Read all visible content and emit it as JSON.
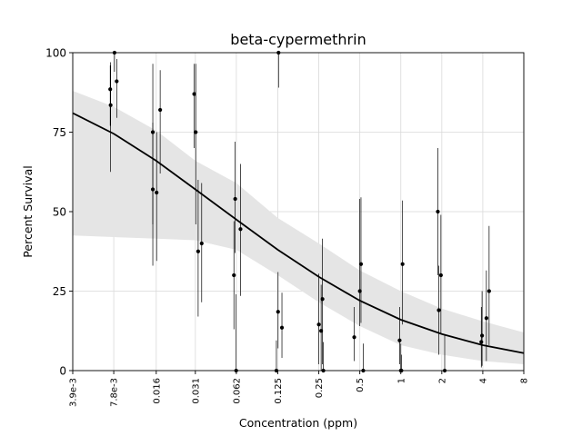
{
  "chart_data": {
    "type": "scatter",
    "title": "beta-cypermethrin",
    "xlabel": "Concentration (ppm)",
    "ylabel": "Percent Survival",
    "x_scale": "log2",
    "xlim": [
      0.0039,
      8
    ],
    "ylim": [
      0,
      100
    ],
    "x_ticks": [
      {
        "value": 0.0039,
        "label": "3.9e-3"
      },
      {
        "value": 0.0078,
        "label": "7.8e-3"
      },
      {
        "value": 0.016,
        "label": "0.016"
      },
      {
        "value": 0.031,
        "label": "0.031"
      },
      {
        "value": 0.062,
        "label": "0.062"
      },
      {
        "value": 0.125,
        "label": "0.125"
      },
      {
        "value": 0.25,
        "label": "0.25"
      },
      {
        "value": 0.5,
        "label": "0.5"
      },
      {
        "value": 1,
        "label": "1"
      },
      {
        "value": 2,
        "label": "2"
      },
      {
        "value": 4,
        "label": "4"
      },
      {
        "value": 8,
        "label": "8"
      }
    ],
    "y_ticks": [
      {
        "value": 0,
        "label": "0"
      },
      {
        "value": 25,
        "label": "25"
      },
      {
        "value": 50,
        "label": "50"
      },
      {
        "value": 75,
        "label": "75"
      },
      {
        "value": 100,
        "label": "100"
      }
    ],
    "grid": true,
    "colors": {
      "points": "#000000",
      "curve": "#000000",
      "band": "#e5e5e5",
      "grid": "#d9d9d9"
    },
    "fit_curve": {
      "x": [
        0.0039,
        0.0078,
        0.016,
        0.031,
        0.062,
        0.125,
        0.25,
        0.5,
        1,
        2,
        4,
        8
      ],
      "y": [
        81,
        74.5,
        66,
        57,
        47.5,
        38,
        29.5,
        22,
        16,
        11.5,
        8,
        5.5
      ]
    },
    "confidence_band": {
      "x": [
        0.0039,
        0.0078,
        0.016,
        0.031,
        0.062,
        0.125,
        0.25,
        0.5,
        1,
        2,
        4,
        8
      ],
      "lower": [
        42.5,
        42,
        41.5,
        41,
        38,
        30,
        21.5,
        14,
        8,
        5,
        3,
        2
      ],
      "upper": [
        88,
        83,
        75.5,
        66,
        59,
        48,
        40,
        31.5,
        25,
        19.5,
        15.5,
        12
      ]
    },
    "points": [
      {
        "x": 0.00735,
        "y": 88.5,
        "lo": 77,
        "hi": 96
      },
      {
        "x": 0.0074,
        "y": 83.5,
        "lo": 62.5,
        "hi": 97
      },
      {
        "x": 0.0079,
        "y": 100,
        "lo": 94,
        "hi": 100
      },
      {
        "x": 0.0082,
        "y": 91,
        "lo": 79.5,
        "hi": 98
      },
      {
        "x": 0.0151,
        "y": 75,
        "lo": 46,
        "hi": 96.5
      },
      {
        "x": 0.0151,
        "y": 57,
        "lo": 33,
        "hi": 78
      },
      {
        "x": 0.0161,
        "y": 56,
        "lo": 34.5,
        "hi": 75
      },
      {
        "x": 0.0171,
        "y": 82,
        "lo": 62,
        "hi": 94.5
      },
      {
        "x": 0.0304,
        "y": 87,
        "lo": 70,
        "hi": 96.5
      },
      {
        "x": 0.0312,
        "y": 75,
        "lo": 46,
        "hi": 96.5
      },
      {
        "x": 0.0325,
        "y": 37.5,
        "lo": 17,
        "hi": 60
      },
      {
        "x": 0.0345,
        "y": 40,
        "lo": 21.5,
        "hi": 59
      },
      {
        "x": 0.0595,
        "y": 30,
        "lo": 13,
        "hi": 47
      },
      {
        "x": 0.0608,
        "y": 54,
        "lo": 37,
        "hi": 72
      },
      {
        "x": 0.0618,
        "y": 0,
        "lo": 0,
        "hi": 24
      },
      {
        "x": 0.0665,
        "y": 44.5,
        "lo": 23.5,
        "hi": 65
      },
      {
        "x": 0.122,
        "y": 0,
        "lo": 0,
        "hi": 9.5
      },
      {
        "x": 0.1255,
        "y": 18.5,
        "lo": 7,
        "hi": 31
      },
      {
        "x": 0.1265,
        "y": 100,
        "lo": 89,
        "hi": 100
      },
      {
        "x": 0.134,
        "y": 13.5,
        "lo": 4,
        "hi": 24.5
      },
      {
        "x": 0.25,
        "y": 14.5,
        "lo": 2,
        "hi": 30.5
      },
      {
        "x": 0.26,
        "y": 12.5,
        "lo": 0,
        "hi": 27
      },
      {
        "x": 0.266,
        "y": 22.5,
        "lo": 2,
        "hi": 41.5
      },
      {
        "x": 0.27,
        "y": 0,
        "lo": 0,
        "hi": 9
      },
      {
        "x": 0.455,
        "y": 10.5,
        "lo": 3,
        "hi": 20
      },
      {
        "x": 0.5,
        "y": 25,
        "lo": 14,
        "hi": 54
      },
      {
        "x": 0.51,
        "y": 33.5,
        "lo": 15,
        "hi": 54.5
      },
      {
        "x": 0.53,
        "y": 0,
        "lo": 0,
        "hi": 8.5
      },
      {
        "x": 0.98,
        "y": 9.5,
        "lo": 2,
        "hi": 20
      },
      {
        "x": 1.0,
        "y": 0,
        "lo": 0,
        "hi": 8.5
      },
      {
        "x": 1.01,
        "y": 0,
        "lo": 0,
        "hi": 5
      },
      {
        "x": 1.03,
        "y": 33.5,
        "lo": 14.5,
        "hi": 53.5
      },
      {
        "x": 1.87,
        "y": 50,
        "lo": 30,
        "hi": 70
      },
      {
        "x": 1.9,
        "y": 19,
        "lo": 5,
        "hi": 33
      },
      {
        "x": 1.97,
        "y": 30,
        "lo": 11.5,
        "hi": 49
      },
      {
        "x": 2.1,
        "y": 0,
        "lo": 0,
        "hi": 11
      },
      {
        "x": 3.9,
        "y": 9,
        "lo": 1,
        "hi": 20
      },
      {
        "x": 3.95,
        "y": 11,
        "lo": 1.5,
        "hi": 25
      },
      {
        "x": 4.25,
        "y": 16.5,
        "lo": 3,
        "hi": 31.5
      },
      {
        "x": 4.45,
        "y": 25,
        "lo": 8,
        "hi": 45.5
      }
    ]
  }
}
